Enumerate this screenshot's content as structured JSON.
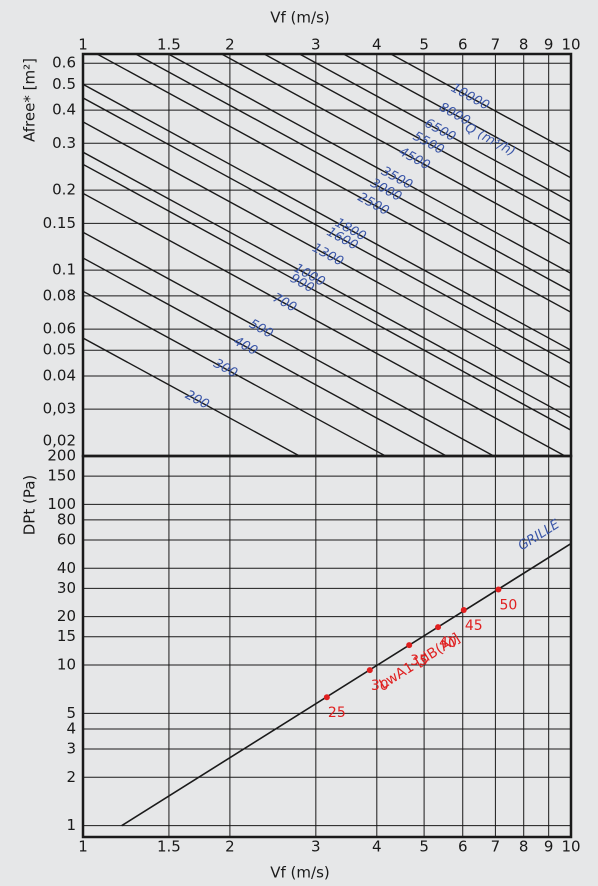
{
  "chart_data": [
    {
      "type": "line",
      "x_label": "Vf (m/s)",
      "y_label": "Afree* [m²]",
      "xlim": [
        1,
        10
      ],
      "xticks": [
        1,
        1.5,
        2,
        3,
        4,
        5,
        6,
        7,
        8,
        9,
        10
      ],
      "ylim": [
        0.02,
        0.65
      ],
      "yticks": [
        0.6,
        0.5,
        0.4,
        0.3,
        0.2,
        0.15,
        0.1,
        0.08,
        0.06,
        0.05,
        0.04,
        {
          "value": 0.03,
          "label": "0,03"
        },
        {
          "value": 0.02,
          "label": "0,02"
        }
      ],
      "log_x": true,
      "log_y": true,
      "grid": true,
      "series_label": "Q (m³/h)",
      "color": "#3a56a8",
      "flow_rates": [
        200,
        300,
        400,
        500,
        700,
        900,
        1000,
        1300,
        1600,
        1800,
        2500,
        3000,
        3500,
        4500,
        5500,
        6500,
        8000,
        10000
      ]
    },
    {
      "type": "line",
      "x_label": "Vf (m/s)",
      "y_label": "DPt (Pa)",
      "xlim": [
        1,
        10
      ],
      "xticks": [
        1,
        1.5,
        2,
        3,
        4,
        5,
        6,
        7,
        8,
        9,
        10
      ],
      "ylim": [
        0.85,
        200
      ],
      "yticks": [
        200,
        150,
        100,
        80,
        60,
        40,
        30,
        20,
        15,
        10,
        5,
        4,
        3,
        2,
        1
      ],
      "log_x": true,
      "log_y": true,
      "grid": true,
      "series": [
        {
          "name": "GRILLE",
          "color": "#1a1a1a",
          "x": [
            1.2,
            10
          ],
          "values": [
            1,
            57
          ]
        }
      ],
      "points": {
        "name": "LwA1 [dB(A)]",
        "color": "#e02020",
        "x": [
          3.16,
          3.87,
          4.66,
          5.34,
          6.03,
          7.1
        ],
        "values": [
          6.3,
          9.3,
          13.3,
          17.2,
          22,
          29.5
        ],
        "levels": [
          25,
          30,
          35,
          40,
          45,
          50
        ]
      }
    }
  ]
}
